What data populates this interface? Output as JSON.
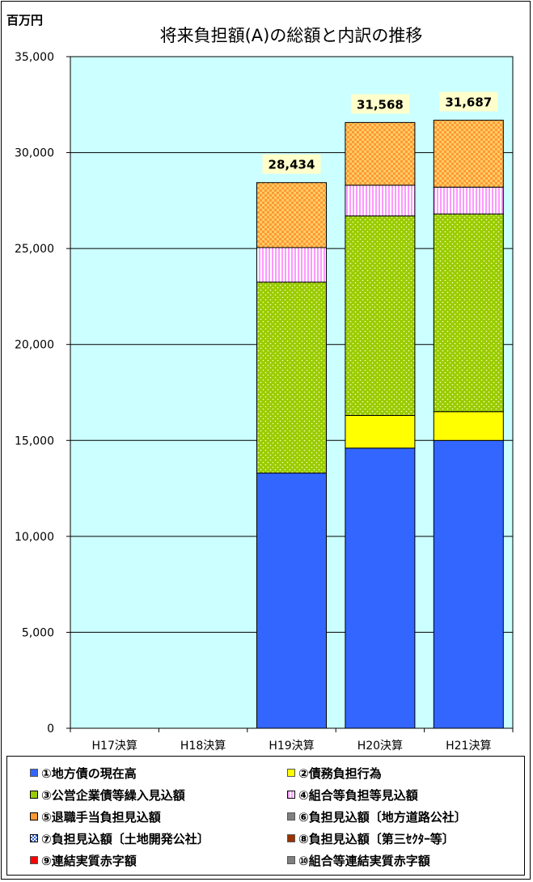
{
  "unit_label": "百万円",
  "chart_data": {
    "type": "bar",
    "stacked": true,
    "title": "将来負担額(A)の総額と内訳の推移",
    "ylabel": "百万円",
    "categories": [
      "H17決算",
      "H18決算",
      "H19決算",
      "H20決算",
      "H21決算"
    ],
    "ylim": [
      0,
      35000
    ],
    "yticks": [
      0,
      5000,
      10000,
      15000,
      20000,
      25000,
      30000,
      35000
    ],
    "ytick_labels": [
      "0",
      "5,000",
      "10,000",
      "15,000",
      "20,000",
      "25,000",
      "30,000",
      "35,000"
    ],
    "grid": true,
    "plot_background": "#ccffff",
    "series": [
      {
        "name": "①地方債の現在高",
        "color": "#3366ff",
        "values": [
          0,
          0,
          13300,
          14600,
          15000
        ]
      },
      {
        "name": "②債務負担行為",
        "color": "#ffff00",
        "values": [
          0,
          0,
          0,
          1700,
          1500
        ]
      },
      {
        "name": "③公営企業債等繰入見込額",
        "color": "#99cc00",
        "values": [
          0,
          0,
          9950,
          10400,
          10300
        ]
      },
      {
        "name": "④組合等負担等見込額",
        "color": "#ffccff",
        "values": [
          0,
          0,
          1800,
          1600,
          1400
        ]
      },
      {
        "name": "⑤退職手当負担見込額",
        "color": "#ff9933",
        "values": [
          0,
          0,
          3384,
          3268,
          3487
        ]
      },
      {
        "name": "⑥負担見込額〔地方道路公社〕",
        "color": "#808080",
        "values": [
          0,
          0,
          0,
          0,
          0
        ]
      },
      {
        "name": "⑦負担見込額〔土地開発公社〕",
        "color": "#6680cc",
        "values": [
          0,
          0,
          0,
          0,
          0
        ]
      },
      {
        "name": "⑧負担見込額〔第三ｾｸﾀｰ等〕",
        "color": "#993300",
        "values": [
          0,
          0,
          0,
          0,
          0
        ]
      },
      {
        "name": "⑨連結実質赤字額",
        "color": "#ff0000",
        "values": [
          0,
          0,
          0,
          0,
          0
        ]
      },
      {
        "name": "⑩組合等連結実質赤字額",
        "color": "#808080",
        "values": [
          0,
          0,
          0,
          0,
          0
        ]
      }
    ],
    "totals": [
      null,
      null,
      28434,
      31568,
      31687
    ],
    "total_labels": [
      "",
      "",
      "28,434",
      "31,568",
      "31,687"
    ],
    "legend_position": "bottom"
  }
}
